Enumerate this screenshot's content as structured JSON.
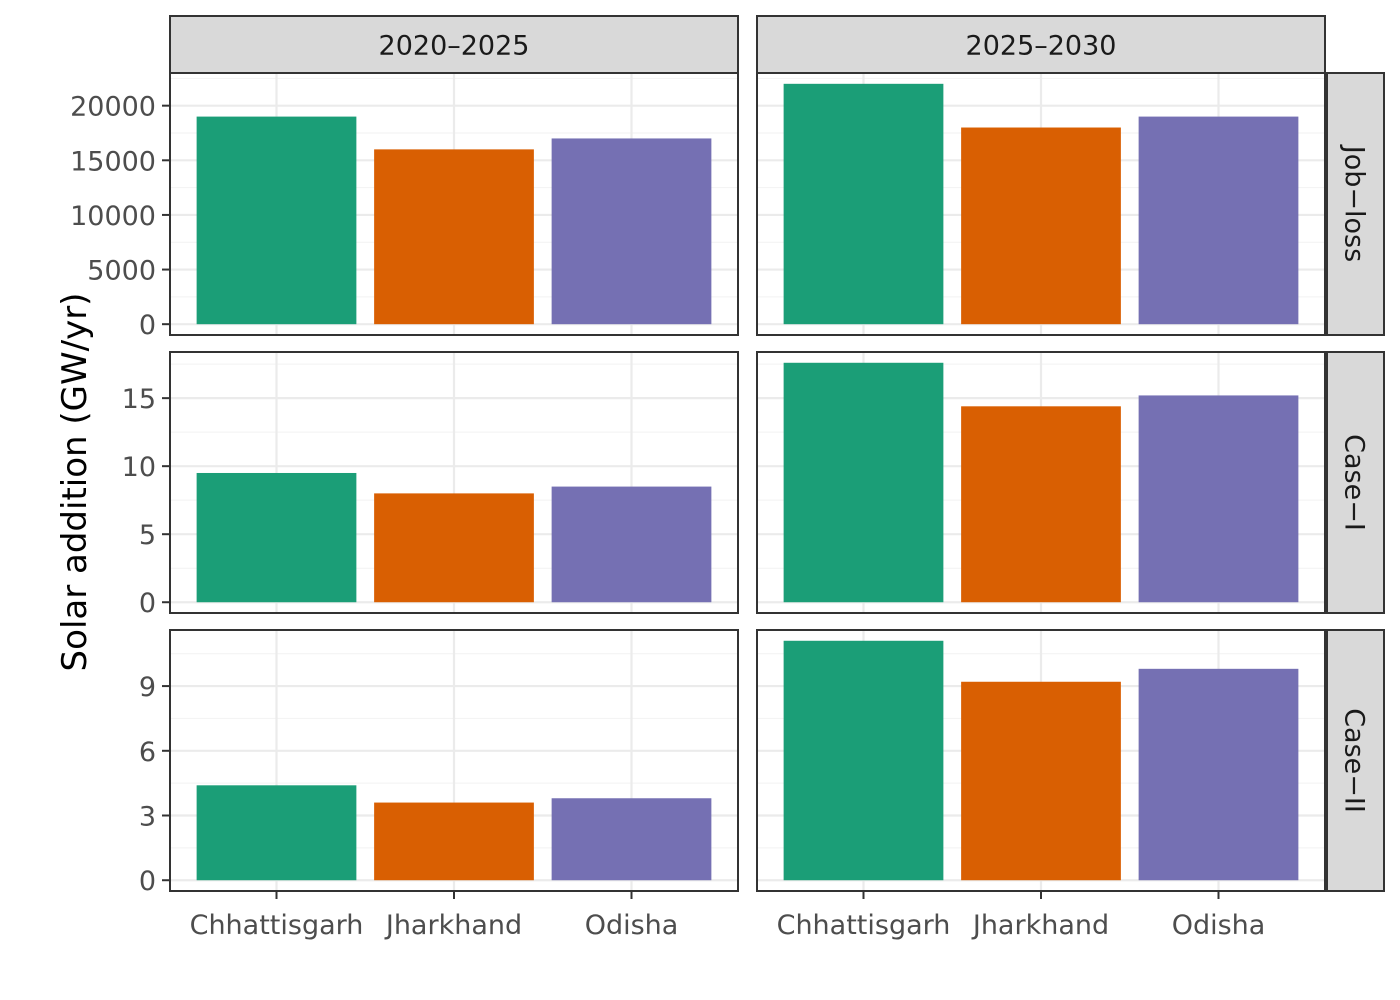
{
  "chart_data": {
    "type": "bar",
    "ylabel": "Solar addition (GW/yr)",
    "categories": [
      "Chhattisgarh",
      "Jharkhand",
      "Odisha"
    ],
    "columns": [
      "2020–2025",
      "2025–2030"
    ],
    "rows": [
      {
        "label": "Job−loss",
        "ylim": [
          0,
          22000
        ],
        "ticks": [
          0,
          5000,
          10000,
          15000,
          20000
        ],
        "tick_labels": [
          "0",
          "5000",
          "10000",
          "15000",
          "20000"
        ],
        "values": [
          [
            19000,
            16000,
            17000
          ],
          [
            22000,
            18000,
            19000
          ]
        ]
      },
      {
        "label": "Case−I",
        "ylim": [
          0,
          17.6
        ],
        "ticks": [
          0,
          5,
          10,
          15
        ],
        "tick_labels": [
          "0",
          "5",
          "10",
          "15"
        ],
        "values": [
          [
            9.5,
            8.0,
            8.5
          ],
          [
            17.6,
            14.4,
            15.2
          ]
        ]
      },
      {
        "label": "Case−II",
        "ylim": [
          0,
          11.1
        ],
        "ticks": [
          0,
          3,
          6,
          9
        ],
        "tick_labels": [
          "0",
          "3",
          "6",
          "9"
        ],
        "values": [
          [
            4.4,
            3.6,
            3.8
          ],
          [
            11.1,
            9.2,
            9.8
          ]
        ]
      }
    ],
    "colors": [
      "#1b9e77",
      "#d95f02",
      "#7570b3"
    ],
    "grid": true,
    "legend": "none"
  }
}
